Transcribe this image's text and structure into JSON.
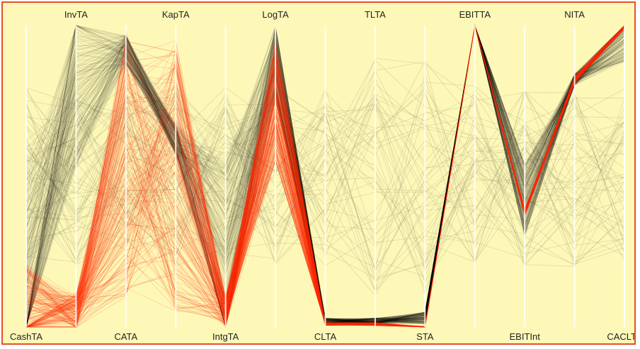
{
  "chart_data": {
    "type": "parallel-coordinates",
    "axes": [
      "CashTA",
      "InvTA",
      "CATA",
      "KapTA",
      "IntgTA",
      "LogTA",
      "CLTA",
      "TLTA",
      "STA",
      "EBITTA",
      "EBITInt",
      "NITA",
      "CACLTA"
    ],
    "label_positions": [
      "bottom",
      "top",
      "bottom",
      "top",
      "bottom",
      "top",
      "bottom",
      "top",
      "bottom",
      "top",
      "bottom",
      "top",
      "bottom"
    ],
    "value_range": [
      0,
      1
    ],
    "series": [
      {
        "name": "",
        "color": "#000000",
        "profile": [
          0.12,
          0.78,
          0.92,
          0.62,
          0.22,
          0.88,
          0.02,
          0.02,
          0.03,
          1.0,
          0.42,
          0.82,
          0.96
        ],
        "spread": [
          0.45,
          0.25,
          0.05,
          0.05,
          0.35,
          0.12,
          0.01,
          0.01,
          0.02,
          0.0,
          0.12,
          0.02,
          0.08
        ]
      },
      {
        "name": "",
        "color": "#ff2a00",
        "profile": [
          0.06,
          0.05,
          0.55,
          0.5,
          0.05,
          0.75,
          0.01,
          0.01,
          0.0,
          1.0,
          0.38,
          0.82,
          1.0
        ],
        "spread": [
          0.15,
          0.06,
          0.45,
          0.45,
          0.05,
          0.2,
          0.005,
          0.005,
          0.002,
          0.0,
          0.01,
          0.01,
          0.01
        ]
      },
      {
        "name": "",
        "color": "#a8a27a",
        "profile": [
          0.5,
          0.5,
          0.5,
          0.5,
          0.5,
          0.5,
          0.5,
          0.5,
          0.5,
          0.5,
          0.5,
          0.5,
          0.5
        ],
        "spread": [
          0.3,
          0.3,
          0.3,
          0.3,
          0.3,
          0.3,
          0.3,
          0.4,
          0.4,
          0.3,
          0.3,
          0.3,
          0.3
        ]
      }
    ],
    "background": "#fdf8b8",
    "border_color": "#e5502a",
    "axis_color": "#ffffff"
  }
}
